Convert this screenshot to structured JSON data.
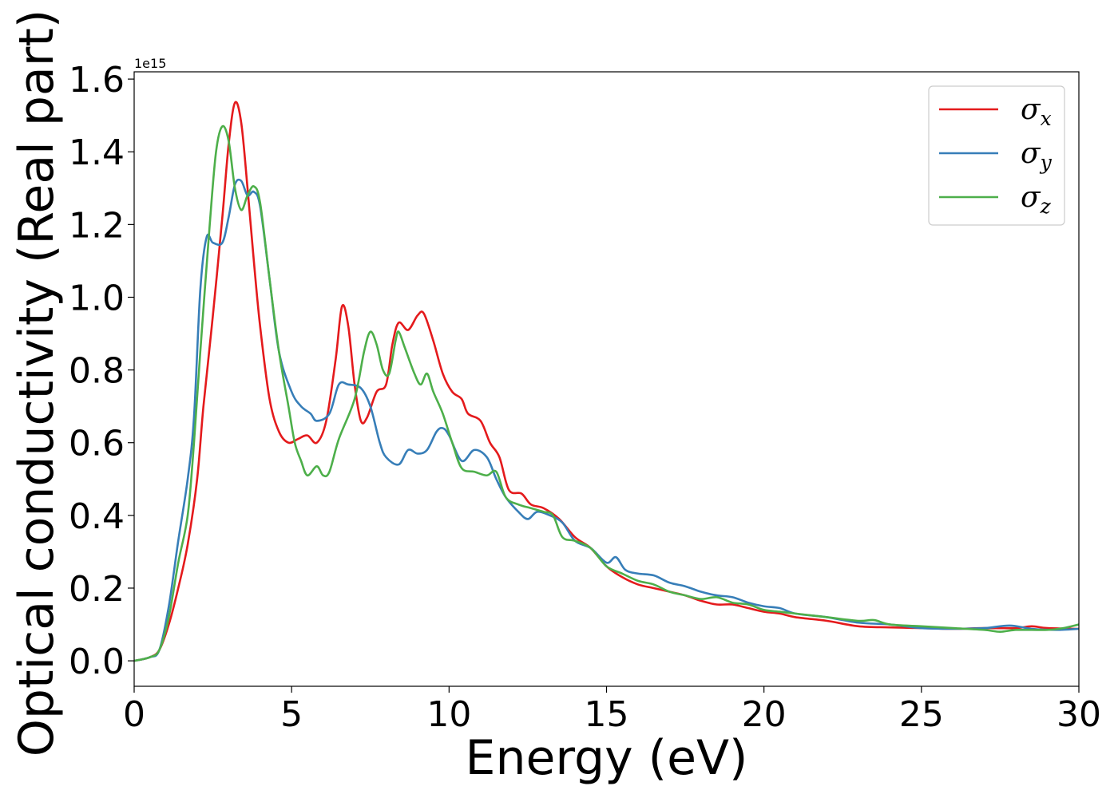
{
  "chart_data": {
    "type": "line",
    "title": "",
    "xlabel": "Energy (eV)",
    "ylabel": "Optical conductivity (Real part)",
    "y_offset_label": "1e15",
    "y_scale": 1000000000000000.0,
    "xlim": [
      0,
      30
    ],
    "ylim": [
      -0.07,
      1.62
    ],
    "x_ticks": [
      0,
      5,
      10,
      15,
      20,
      25,
      30
    ],
    "y_ticks": [
      0.0,
      0.2,
      0.4,
      0.6,
      0.8,
      1.0,
      1.2,
      1.4,
      1.6
    ],
    "x_tick_labels": [
      "0",
      "5",
      "10",
      "15",
      "20",
      "25",
      "30"
    ],
    "y_tick_labels": [
      "0.0",
      "0.2",
      "0.4",
      "0.6",
      "0.8",
      "1.0",
      "1.2",
      "1.4",
      "1.6"
    ],
    "grid": false,
    "legend": "top-right",
    "series": [
      {
        "name": "σx",
        "symbol": "σ",
        "subscript": "x",
        "color": "#e41a1c",
        "points": [
          [
            0,
            0
          ],
          [
            0.5,
            0.01
          ],
          [
            0.8,
            0.03
          ],
          [
            1.1,
            0.1
          ],
          [
            1.4,
            0.2
          ],
          [
            1.7,
            0.32
          ],
          [
            2.0,
            0.5
          ],
          [
            2.2,
            0.7
          ],
          [
            2.5,
            0.95
          ],
          [
            2.8,
            1.22
          ],
          [
            3.0,
            1.42
          ],
          [
            3.2,
            1.535
          ],
          [
            3.4,
            1.48
          ],
          [
            3.6,
            1.3
          ],
          [
            3.8,
            1.1
          ],
          [
            4.0,
            0.92
          ],
          [
            4.3,
            0.72
          ],
          [
            4.6,
            0.63
          ],
          [
            4.9,
            0.6
          ],
          [
            5.2,
            0.61
          ],
          [
            5.5,
            0.62
          ],
          [
            5.8,
            0.6
          ],
          [
            6.1,
            0.66
          ],
          [
            6.4,
            0.83
          ],
          [
            6.6,
            0.975
          ],
          [
            6.8,
            0.92
          ],
          [
            7.0,
            0.76
          ],
          [
            7.2,
            0.66
          ],
          [
            7.4,
            0.67
          ],
          [
            7.7,
            0.74
          ],
          [
            8.0,
            0.76
          ],
          [
            8.2,
            0.87
          ],
          [
            8.4,
            0.93
          ],
          [
            8.7,
            0.91
          ],
          [
            9.0,
            0.95
          ],
          [
            9.2,
            0.955
          ],
          [
            9.5,
            0.88
          ],
          [
            9.8,
            0.79
          ],
          [
            10.1,
            0.74
          ],
          [
            10.4,
            0.72
          ],
          [
            10.6,
            0.68
          ],
          [
            11.0,
            0.66
          ],
          [
            11.3,
            0.6
          ],
          [
            11.6,
            0.56
          ],
          [
            11.9,
            0.47
          ],
          [
            12.3,
            0.46
          ],
          [
            12.6,
            0.43
          ],
          [
            13.0,
            0.42
          ],
          [
            13.5,
            0.39
          ],
          [
            14.0,
            0.34
          ],
          [
            14.5,
            0.31
          ],
          [
            15.0,
            0.26
          ],
          [
            15.5,
            0.23
          ],
          [
            16.0,
            0.21
          ],
          [
            16.5,
            0.2
          ],
          [
            17.0,
            0.19
          ],
          [
            17.5,
            0.18
          ],
          [
            18.0,
            0.165
          ],
          [
            18.5,
            0.155
          ],
          [
            19.0,
            0.155
          ],
          [
            19.5,
            0.145
          ],
          [
            20.0,
            0.135
          ],
          [
            20.5,
            0.13
          ],
          [
            21.0,
            0.12
          ],
          [
            22.0,
            0.11
          ],
          [
            23.0,
            0.095
          ],
          [
            24.0,
            0.092
          ],
          [
            25.0,
            0.09
          ],
          [
            26.0,
            0.088
          ],
          [
            27.0,
            0.09
          ],
          [
            28.0,
            0.09
          ],
          [
            28.5,
            0.095
          ],
          [
            29.0,
            0.09
          ],
          [
            30.0,
            0.088
          ]
        ]
      },
      {
        "name": "σy",
        "symbol": "σ",
        "subscript": "y",
        "color": "#377eb8",
        "points": [
          [
            0,
            0
          ],
          [
            0.5,
            0.01
          ],
          [
            0.8,
            0.03
          ],
          [
            1.1,
            0.15
          ],
          [
            1.4,
            0.33
          ],
          [
            1.7,
            0.5
          ],
          [
            1.9,
            0.67
          ],
          [
            2.1,
            1.02
          ],
          [
            2.3,
            1.165
          ],
          [
            2.5,
            1.15
          ],
          [
            2.8,
            1.15
          ],
          [
            3.0,
            1.22
          ],
          [
            3.2,
            1.31
          ],
          [
            3.4,
            1.32
          ],
          [
            3.6,
            1.28
          ],
          [
            3.8,
            1.29
          ],
          [
            4.0,
            1.25
          ],
          [
            4.3,
            1.05
          ],
          [
            4.6,
            0.85
          ],
          [
            5.0,
            0.74
          ],
          [
            5.3,
            0.7
          ],
          [
            5.6,
            0.68
          ],
          [
            5.8,
            0.66
          ],
          [
            6.2,
            0.68
          ],
          [
            6.5,
            0.76
          ],
          [
            6.8,
            0.76
          ],
          [
            7.2,
            0.75
          ],
          [
            7.5,
            0.7
          ],
          [
            7.8,
            0.6
          ],
          [
            8.0,
            0.56
          ],
          [
            8.4,
            0.54
          ],
          [
            8.7,
            0.58
          ],
          [
            9.0,
            0.57
          ],
          [
            9.3,
            0.58
          ],
          [
            9.6,
            0.63
          ],
          [
            9.8,
            0.64
          ],
          [
            10.0,
            0.62
          ],
          [
            10.4,
            0.55
          ],
          [
            10.8,
            0.58
          ],
          [
            11.2,
            0.56
          ],
          [
            11.5,
            0.5
          ],
          [
            11.8,
            0.45
          ],
          [
            12.2,
            0.41
          ],
          [
            12.5,
            0.39
          ],
          [
            12.8,
            0.41
          ],
          [
            13.2,
            0.4
          ],
          [
            13.6,
            0.38
          ],
          [
            14.0,
            0.33
          ],
          [
            14.5,
            0.31
          ],
          [
            15.0,
            0.27
          ],
          [
            15.3,
            0.285
          ],
          [
            15.6,
            0.25
          ],
          [
            16.0,
            0.24
          ],
          [
            16.5,
            0.235
          ],
          [
            17.0,
            0.215
          ],
          [
            17.5,
            0.205
          ],
          [
            18.0,
            0.19
          ],
          [
            18.5,
            0.18
          ],
          [
            19.0,
            0.175
          ],
          [
            19.5,
            0.16
          ],
          [
            20.0,
            0.15
          ],
          [
            20.5,
            0.145
          ],
          [
            21.0,
            0.13
          ],
          [
            22.0,
            0.12
          ],
          [
            23.0,
            0.105
          ],
          [
            24.0,
            0.1
          ],
          [
            25.0,
            0.09
          ],
          [
            26.0,
            0.088
          ],
          [
            27.0,
            0.09
          ],
          [
            27.8,
            0.097
          ],
          [
            28.5,
            0.088
          ],
          [
            29.3,
            0.085
          ],
          [
            30.0,
            0.088
          ]
        ]
      },
      {
        "name": "σz",
        "symbol": "σ",
        "subscript": "z",
        "color": "#4daf4a",
        "points": [
          [
            0,
            0
          ],
          [
            0.5,
            0.01
          ],
          [
            0.8,
            0.03
          ],
          [
            1.1,
            0.12
          ],
          [
            1.4,
            0.27
          ],
          [
            1.7,
            0.4
          ],
          [
            1.9,
            0.6
          ],
          [
            2.1,
            0.85
          ],
          [
            2.4,
            1.2
          ],
          [
            2.6,
            1.4
          ],
          [
            2.8,
            1.47
          ],
          [
            3.0,
            1.43
          ],
          [
            3.2,
            1.3
          ],
          [
            3.4,
            1.24
          ],
          [
            3.6,
            1.28
          ],
          [
            3.8,
            1.305
          ],
          [
            4.0,
            1.26
          ],
          [
            4.3,
            1.05
          ],
          [
            4.6,
            0.85
          ],
          [
            4.9,
            0.7
          ],
          [
            5.1,
            0.6
          ],
          [
            5.3,
            0.55
          ],
          [
            5.5,
            0.51
          ],
          [
            5.8,
            0.535
          ],
          [
            6.0,
            0.51
          ],
          [
            6.2,
            0.52
          ],
          [
            6.5,
            0.61
          ],
          [
            7.0,
            0.72
          ],
          [
            7.3,
            0.85
          ],
          [
            7.5,
            0.905
          ],
          [
            7.7,
            0.87
          ],
          [
            7.9,
            0.8
          ],
          [
            8.1,
            0.79
          ],
          [
            8.3,
            0.88
          ],
          [
            8.4,
            0.905
          ],
          [
            8.6,
            0.86
          ],
          [
            8.9,
            0.79
          ],
          [
            9.1,
            0.76
          ],
          [
            9.3,
            0.79
          ],
          [
            9.5,
            0.74
          ],
          [
            9.8,
            0.68
          ],
          [
            10.1,
            0.6
          ],
          [
            10.4,
            0.53
          ],
          [
            10.8,
            0.52
          ],
          [
            11.2,
            0.51
          ],
          [
            11.5,
            0.52
          ],
          [
            11.8,
            0.45
          ],
          [
            12.2,
            0.43
          ],
          [
            12.6,
            0.42
          ],
          [
            13.0,
            0.41
          ],
          [
            13.3,
            0.4
          ],
          [
            13.6,
            0.34
          ],
          [
            14.0,
            0.33
          ],
          [
            14.5,
            0.31
          ],
          [
            15.0,
            0.26
          ],
          [
            15.5,
            0.24
          ],
          [
            16.0,
            0.22
          ],
          [
            16.5,
            0.21
          ],
          [
            17.0,
            0.19
          ],
          [
            17.5,
            0.18
          ],
          [
            18.0,
            0.17
          ],
          [
            18.5,
            0.175
          ],
          [
            19.0,
            0.16
          ],
          [
            19.5,
            0.155
          ],
          [
            20.0,
            0.14
          ],
          [
            20.5,
            0.135
          ],
          [
            21.0,
            0.13
          ],
          [
            22.0,
            0.12
          ],
          [
            23.0,
            0.11
          ],
          [
            23.5,
            0.112
          ],
          [
            24.0,
            0.1
          ],
          [
            25.0,
            0.095
          ],
          [
            26.0,
            0.09
          ],
          [
            27.0,
            0.085
          ],
          [
            27.5,
            0.08
          ],
          [
            28.0,
            0.085
          ],
          [
            29.0,
            0.085
          ],
          [
            29.5,
            0.09
          ],
          [
            30.0,
            0.1
          ]
        ]
      }
    ]
  }
}
